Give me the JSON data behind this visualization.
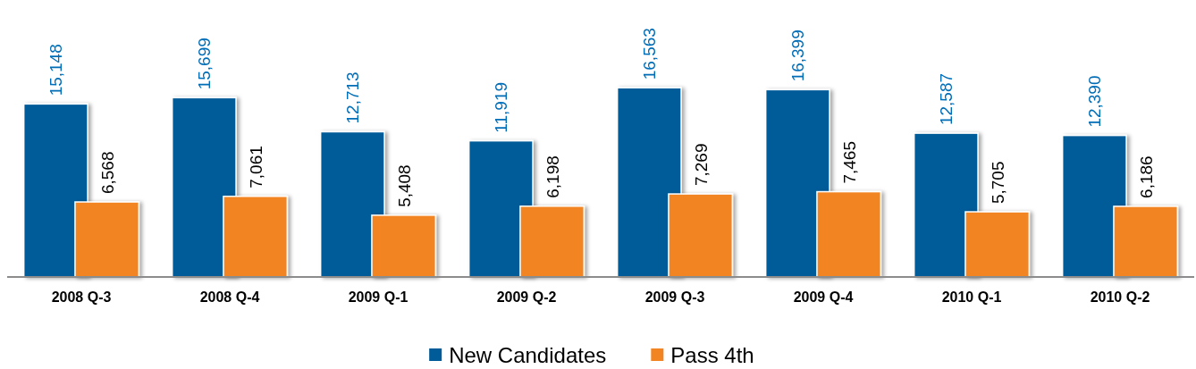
{
  "chart_data": {
    "type": "bar",
    "categories": [
      "2008 Q-3",
      "2008 Q-4",
      "2009 Q-1",
      "2009 Q-2",
      "2009 Q-3",
      "2009 Q-4",
      "2010 Q-1",
      "2010 Q-2"
    ],
    "series": [
      {
        "name": "New Candidates",
        "color": "#005b99",
        "values": [
          15148,
          15699,
          12713,
          11919,
          16563,
          16399,
          12587,
          12390
        ],
        "value_labels": [
          "15,148",
          "15,699",
          "12,713",
          "11,919",
          "16,563",
          "16,399",
          "12,587",
          "12,390"
        ]
      },
      {
        "name": "Pass 4th",
        "color": "#f38422",
        "values": [
          6568,
          7061,
          5408,
          6198,
          7269,
          7465,
          5705,
          6186
        ],
        "value_labels": [
          "6,568",
          "7,061",
          "5,408",
          "6,198",
          "7,269",
          "7,465",
          "5,705",
          "6,186"
        ]
      }
    ],
    "legend": "bottom"
  }
}
